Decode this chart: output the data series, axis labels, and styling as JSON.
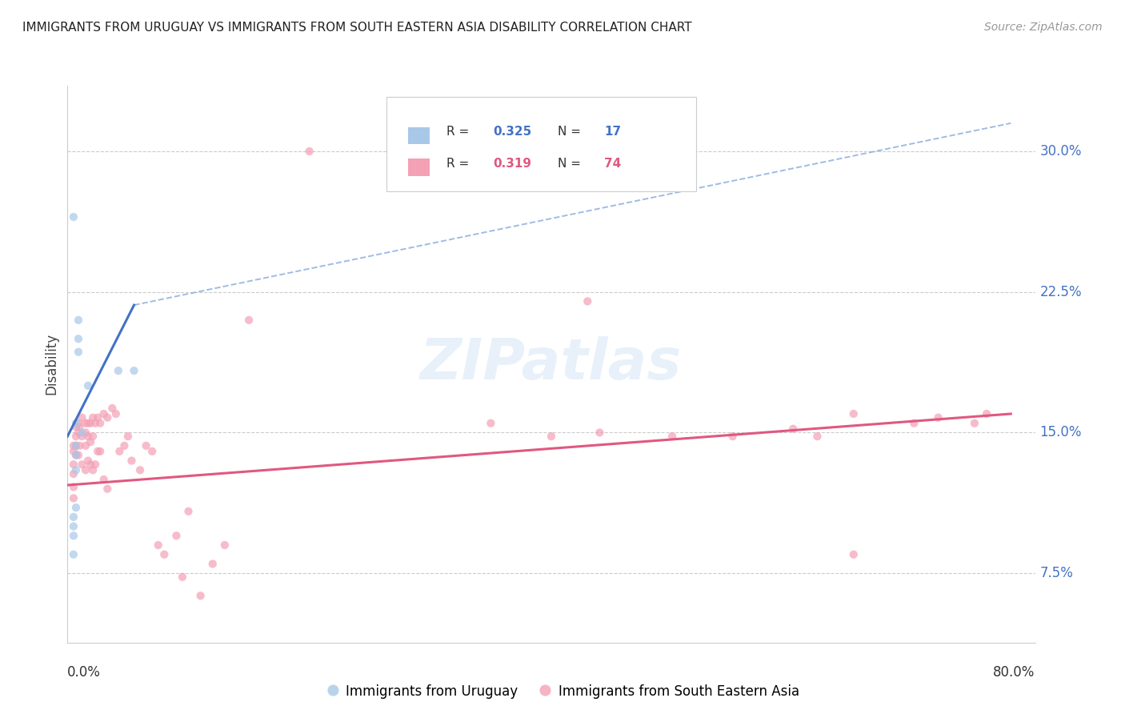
{
  "title": "IMMIGRANTS FROM URUGUAY VS IMMIGRANTS FROM SOUTH EASTERN ASIA DISABILITY CORRELATION CHART",
  "source": "Source: ZipAtlas.com",
  "ylabel": "Disability",
  "yticks": [
    0.075,
    0.15,
    0.225,
    0.3
  ],
  "ytick_labels": [
    "7.5%",
    "15.0%",
    "22.5%",
    "30.0%"
  ],
  "xlim": [
    0.0,
    0.8
  ],
  "ylim": [
    0.038,
    0.335
  ],
  "color_blue": "#a8c8e8",
  "color_pink": "#f4a0b5",
  "color_blue_line": "#4472C4",
  "color_pink_line": "#e05880",
  "color_dashed": "#88aadd",
  "color_ytick_label": "#4472C4",
  "scatter_alpha": 0.7,
  "scatter_size": 55,
  "uruguay_x": [
    0.005,
    0.005,
    0.005,
    0.005,
    0.005,
    0.007,
    0.007,
    0.007,
    0.007,
    0.007,
    0.009,
    0.009,
    0.009,
    0.012,
    0.017,
    0.042,
    0.055
  ],
  "uruguay_y": [
    0.265,
    0.105,
    0.1,
    0.095,
    0.085,
    0.155,
    0.143,
    0.138,
    0.13,
    0.11,
    0.21,
    0.2,
    0.193,
    0.15,
    0.175,
    0.183,
    0.183
  ],
  "sea_x": [
    0.005,
    0.005,
    0.005,
    0.005,
    0.005,
    0.005,
    0.007,
    0.007,
    0.007,
    0.007,
    0.009,
    0.009,
    0.009,
    0.01,
    0.01,
    0.012,
    0.012,
    0.012,
    0.015,
    0.015,
    0.015,
    0.015,
    0.017,
    0.017,
    0.017,
    0.019,
    0.019,
    0.019,
    0.021,
    0.021,
    0.021,
    0.023,
    0.023,
    0.025,
    0.025,
    0.027,
    0.027,
    0.03,
    0.03,
    0.033,
    0.033,
    0.037,
    0.04,
    0.043,
    0.047,
    0.05,
    0.053,
    0.06,
    0.065,
    0.07,
    0.075,
    0.08,
    0.09,
    0.095,
    0.1,
    0.11,
    0.12,
    0.13,
    0.15,
    0.2,
    0.35,
    0.4,
    0.43,
    0.44,
    0.5,
    0.55,
    0.6,
    0.62,
    0.65,
    0.65,
    0.7,
    0.72,
    0.75,
    0.76
  ],
  "sea_y": [
    0.143,
    0.14,
    0.133,
    0.128,
    0.121,
    0.115,
    0.153,
    0.148,
    0.143,
    0.138,
    0.155,
    0.15,
    0.138,
    0.153,
    0.143,
    0.158,
    0.148,
    0.133,
    0.155,
    0.15,
    0.143,
    0.13,
    0.155,
    0.148,
    0.135,
    0.155,
    0.145,
    0.133,
    0.158,
    0.148,
    0.13,
    0.155,
    0.133,
    0.158,
    0.14,
    0.155,
    0.14,
    0.16,
    0.125,
    0.158,
    0.12,
    0.163,
    0.16,
    0.14,
    0.143,
    0.148,
    0.135,
    0.13,
    0.143,
    0.14,
    0.09,
    0.085,
    0.095,
    0.073,
    0.108,
    0.063,
    0.08,
    0.09,
    0.21,
    0.3,
    0.155,
    0.148,
    0.22,
    0.15,
    0.148,
    0.148,
    0.152,
    0.148,
    0.16,
    0.085,
    0.155,
    0.158,
    0.155,
    0.16
  ],
  "blue_line_x0": 0.0,
  "blue_line_x1": 0.055,
  "blue_line_y0": 0.148,
  "blue_line_y1": 0.218,
  "dash_line_x0": 0.055,
  "dash_line_x1": 0.78,
  "dash_line_y0": 0.218,
  "dash_line_y1": 0.315,
  "pink_line_x0": 0.0,
  "pink_line_x1": 0.78,
  "pink_line_y0": 0.122,
  "pink_line_y1": 0.16
}
